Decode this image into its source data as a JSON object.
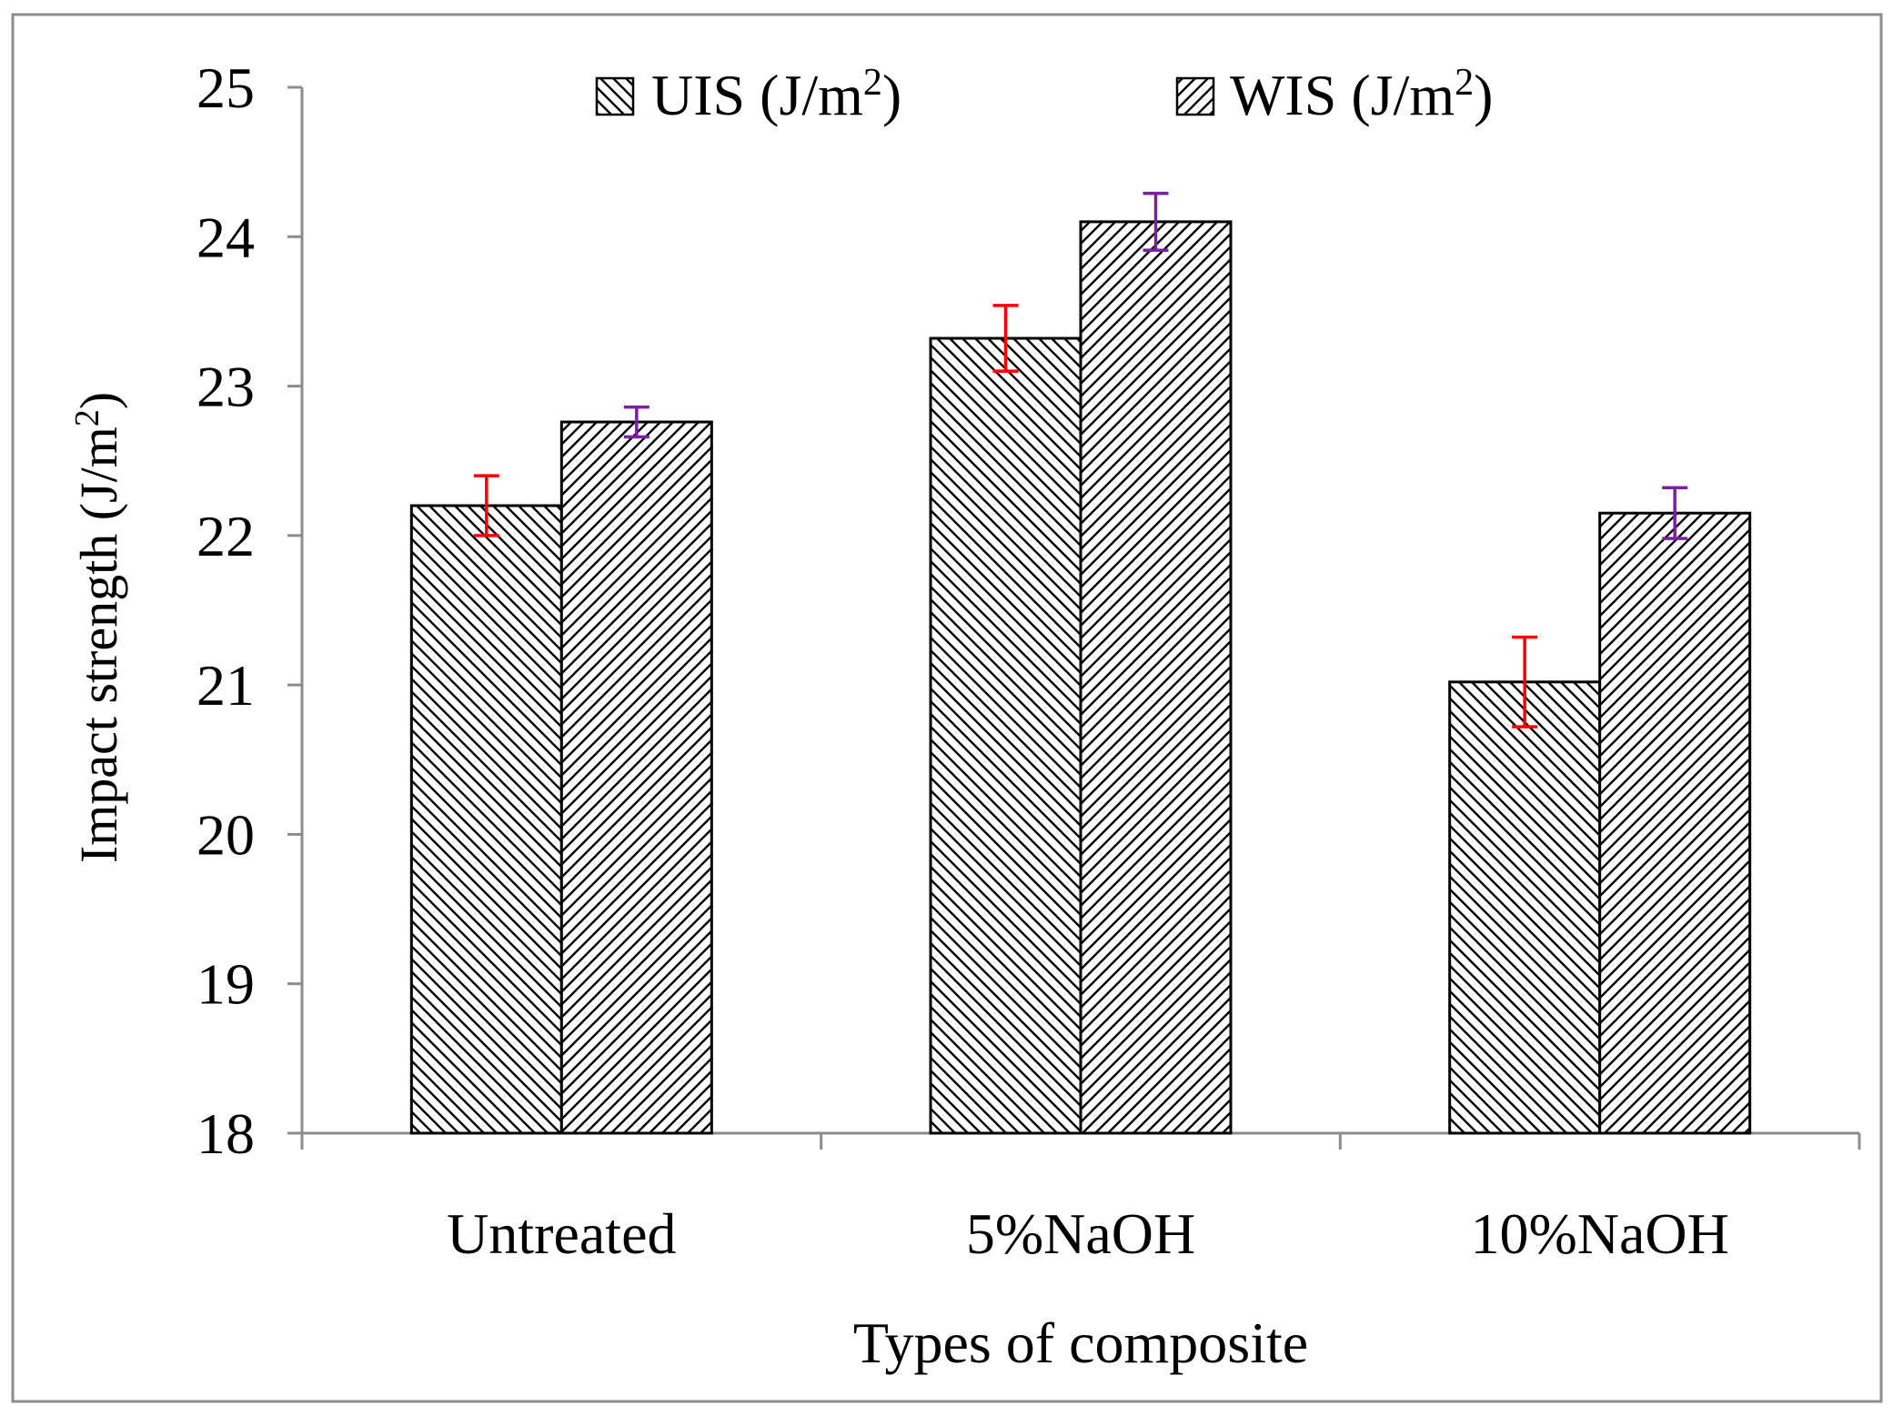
{
  "chart_data": {
    "type": "bar",
    "title": "",
    "xlabel": "Types of composite",
    "ylabel_main": "Impact strength (J/m",
    "ylabel_sup": "2",
    "ylabel_close": ")",
    "categories": [
      "Untreated",
      "5%NaOH",
      "10%NaOH"
    ],
    "ylim": [
      18,
      25
    ],
    "yticks": [
      "18",
      "19",
      "20",
      "21",
      "22",
      "23",
      "24",
      "25"
    ],
    "series": [
      {
        "name": "UIS (J/m2)",
        "legend_main": "UIS (J/m",
        "legend_sup": "2",
        "legend_close": ")",
        "values": [
          22.2,
          23.32,
          21.02
        ],
        "errors": [
          0.2,
          0.22,
          0.3
        ],
        "error_color": "#ff0000",
        "hatch": "backslash"
      },
      {
        "name": "WIS (J/m2)",
        "legend_main": "WIS (J/m",
        "legend_sup": "2",
        "legend_close": ")",
        "values": [
          22.76,
          24.1,
          22.15
        ],
        "errors": [
          0.1,
          0.19,
          0.17
        ],
        "error_color": "#7a1fa2",
        "hatch": "slash"
      }
    ],
    "legend_position": "top",
    "grid": false
  }
}
